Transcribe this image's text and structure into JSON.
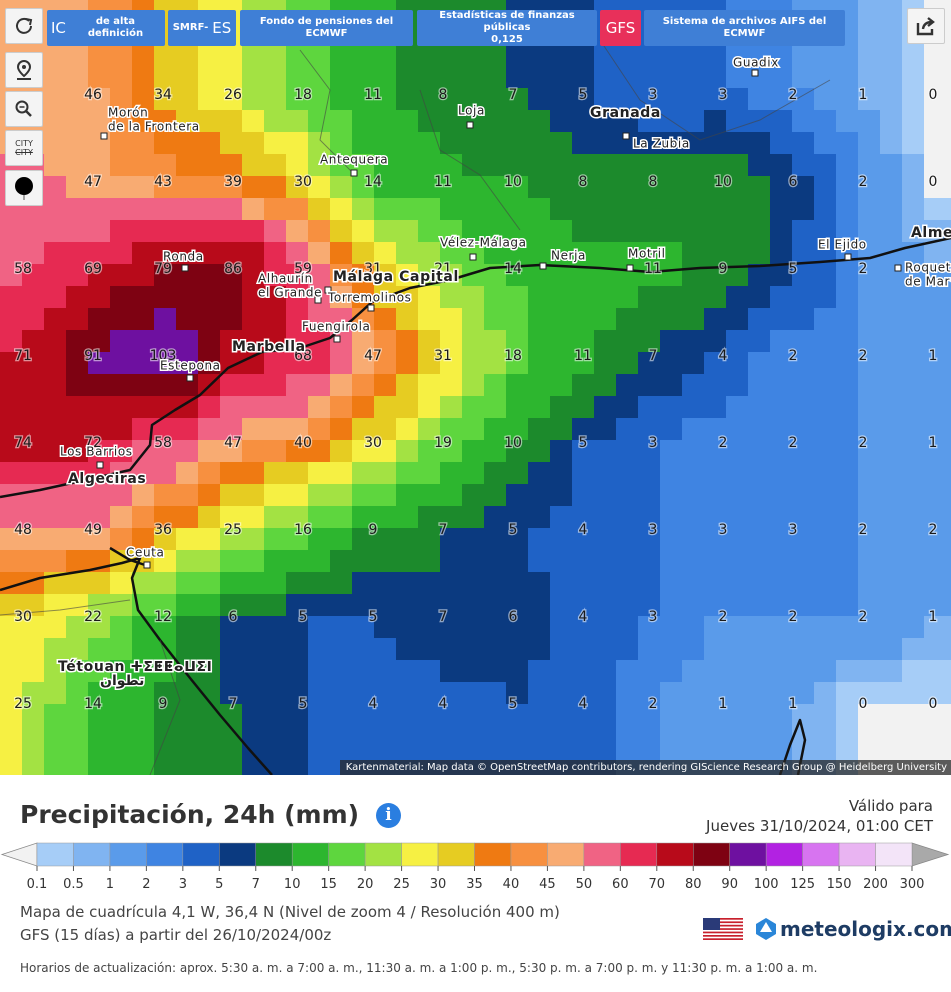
{
  "toolbar": {
    "buttons": [
      [
        "IC",
        "de alta definición"
      ],
      [
        "SMRF-",
        "ES"
      ],
      [
        "Fondo de pensiones del ECMWF"
      ],
      [
        "Estadísticas de finanzas públicas",
        "0,125"
      ],
      [
        "GFS"
      ],
      [
        "Sistema de archivos AIFS del ECMWF"
      ]
    ],
    "city_toggle": [
      "CITY",
      "CITY"
    ]
  },
  "map": {
    "grid": [
      [
        null,
        46,
        34,
        26,
        18,
        11,
        8,
        7,
        5,
        3,
        3,
        2,
        1,
        0
      ],
      [
        null,
        47,
        43,
        39,
        30,
        14,
        11,
        10,
        8,
        8,
        10,
        6,
        2,
        0
      ],
      [
        58,
        69,
        79,
        86,
        59,
        31,
        21,
        14,
        null,
        11,
        9,
        5,
        2,
        null
      ],
      [
        71,
        91,
        103,
        null,
        68,
        47,
        31,
        18,
        11,
        7,
        4,
        2,
        2,
        1
      ],
      [
        74,
        72,
        58,
        47,
        40,
        30,
        19,
        10,
        5,
        3,
        2,
        2,
        2,
        1
      ],
      [
        48,
        49,
        36,
        25,
        16,
        9,
        7,
        5,
        4,
        3,
        3,
        3,
        2,
        2
      ],
      [
        30,
        22,
        12,
        6,
        5,
        5,
        7,
        6,
        4,
        3,
        2,
        2,
        2,
        1
      ],
      [
        25,
        14,
        9,
        7,
        5,
        4,
        4,
        5,
        4,
        2,
        1,
        1,
        0,
        0
      ]
    ],
    "places": [
      [
        "Morón",
        "de la Frontera"
      ],
      [
        "Loja"
      ],
      [
        "Granada"
      ],
      [
        "La Zubia"
      ],
      [
        "Guadix"
      ],
      [
        "Antequera"
      ],
      [
        "Vélez-Málaga"
      ],
      [
        "Nerja"
      ],
      [
        "Motril"
      ],
      [
        "El Ejido"
      ],
      [
        "Ronda"
      ],
      [
        "Alhaurín",
        "el Grande"
      ],
      [
        "Málaga Capital"
      ],
      [
        "Torremolinos"
      ],
      [
        "Fuengirola"
      ],
      [
        "Marbella"
      ],
      [
        "Estepona"
      ],
      [
        "Los Barrios"
      ],
      [
        "Algeciras"
      ],
      [
        "Ceuta"
      ],
      [
        "Tétouan ⵜⵉⵟⵟⴰⵡⵉⵏ",
        "تطوان"
      ],
      [
        "Almería"
      ],
      [
        "Roquetas",
        "de Mar"
      ]
    ],
    "attribution": "Kartenmaterial: Map data © OpenStreetMap contributors, rendering GIScience Research Group @ Heidelberg University"
  },
  "legend": {
    "title": "Precipitación, 24h (mm)",
    "valid_label": "Válido para",
    "valid_time": "Jueves 31/10/2024, 01:00 CET",
    "ticks": [
      0.1,
      0.5,
      1,
      2,
      3,
      5,
      7,
      10,
      15,
      20,
      25,
      30,
      35,
      40,
      45,
      50,
      60,
      70,
      80,
      90,
      100,
      125,
      150,
      200,
      300
    ],
    "colors": [
      "#a6cdf7",
      "#80b4f1",
      "#5a9bea",
      "#3f84e2",
      "#1f62c6",
      "#0b3a80",
      "#1c8a2c",
      "#2db62f",
      "#5ed63e",
      "#a3e243",
      "#f6f043",
      "#e6cc22",
      "#ef7a12",
      "#f79040",
      "#f8ab72",
      "#f06384",
      "#e62a52",
      "#b80a1a",
      "#7e0212",
      "#6e10a0",
      "#b222e2",
      "#d774f0",
      "#e9b4f2",
      "#f3e4f8"
    ],
    "below_color": "#f2f2f2",
    "above_color": "#a9a9a9"
  },
  "info": {
    "grid_line": "Mapa de cuadrícula 4,1 W, 36,4 N (Nivel de zoom 4 / Resolución 400 m)",
    "model_line": "GFS (15 días) a partir del 26/10/2024/00z",
    "brand": "meteologix.com",
    "update_times": "Horarios de actualización: aprox. 5:30 a. m. a 7:00 a. m., 11:30 a. m. a 1:00 p. m., 5:30 p. m. a 7:00 p. m. y 11:30 p. m. a 1:00 a. m."
  }
}
